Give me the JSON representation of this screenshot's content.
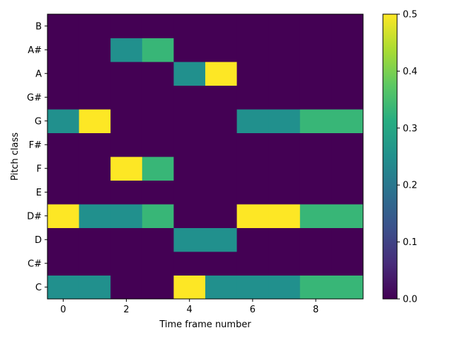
{
  "chart_data": {
    "type": "heatmap",
    "title": "",
    "xlabel": "Time frame number",
    "ylabel": "Pitch class",
    "x_ticks": [
      0,
      2,
      4,
      6,
      8
    ],
    "x_tick_labels": [
      "0",
      "2",
      "4",
      "6",
      "8"
    ],
    "x_range": [
      -0.5,
      9.5
    ],
    "y_categories": [
      "C",
      "C#",
      "D",
      "D#",
      "E",
      "F",
      "F#",
      "G",
      "G#",
      "A",
      "A#",
      "B"
    ],
    "time_frames": [
      0,
      1,
      2,
      3,
      4,
      5,
      6,
      7,
      8,
      9
    ],
    "values": [
      [
        0.25,
        0.25,
        0.0,
        0.0,
        0.5,
        0.25,
        0.25,
        0.25,
        0.333,
        0.333
      ],
      [
        0.0,
        0.0,
        0.0,
        0.0,
        0.0,
        0.0,
        0.0,
        0.0,
        0.0,
        0.0
      ],
      [
        0.0,
        0.0,
        0.0,
        0.0,
        0.25,
        0.25,
        0.0,
        0.0,
        0.0,
        0.0
      ],
      [
        0.5,
        0.25,
        0.25,
        0.333,
        0.0,
        0.0,
        0.5,
        0.5,
        0.333,
        0.333
      ],
      [
        0.0,
        0.0,
        0.0,
        0.0,
        0.0,
        0.0,
        0.0,
        0.0,
        0.0,
        0.0
      ],
      [
        0.0,
        0.0,
        0.5,
        0.333,
        0.0,
        0.0,
        0.0,
        0.0,
        0.0,
        0.0
      ],
      [
        0.0,
        0.0,
        0.0,
        0.0,
        0.0,
        0.0,
        0.0,
        0.0,
        0.0,
        0.0
      ],
      [
        0.25,
        0.5,
        0.0,
        0.0,
        0.0,
        0.0,
        0.25,
        0.25,
        0.333,
        0.333
      ],
      [
        0.0,
        0.0,
        0.0,
        0.0,
        0.0,
        0.0,
        0.0,
        0.0,
        0.0,
        0.0
      ],
      [
        0.0,
        0.0,
        0.0,
        0.0,
        0.25,
        0.5,
        0.0,
        0.0,
        0.0,
        0.0
      ],
      [
        0.0,
        0.0,
        0.25,
        0.333,
        0.0,
        0.0,
        0.0,
        0.0,
        0.0,
        0.0
      ],
      [
        0.0,
        0.0,
        0.0,
        0.0,
        0.0,
        0.0,
        0.0,
        0.0,
        0.0,
        0.0
      ]
    ],
    "colorbar": {
      "colormap": "viridis",
      "range": [
        0.0,
        0.5
      ],
      "ticks": [
        0.0,
        0.1,
        0.2,
        0.3,
        0.4,
        0.5
      ],
      "tick_labels": [
        "0.0",
        "0.1",
        "0.2",
        "0.3",
        "0.4",
        "0.5"
      ]
    },
    "grid": false,
    "legend": "none"
  }
}
